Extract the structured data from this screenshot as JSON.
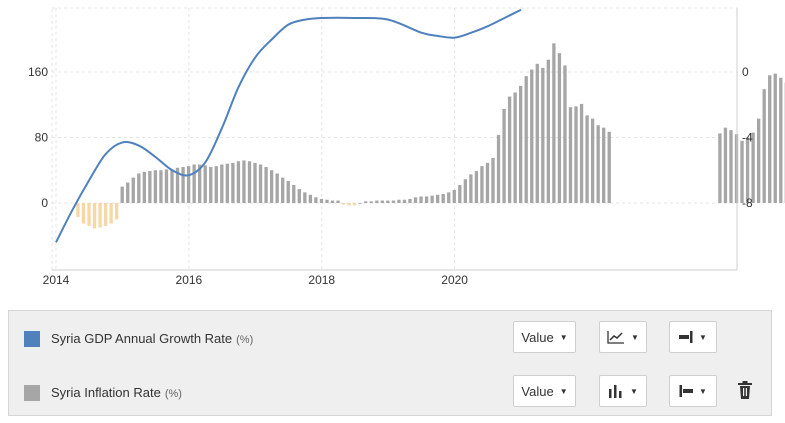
{
  "chart_data": {
    "type": "line+bar",
    "x_ticks": [
      "2014",
      "2016",
      "2018",
      "2020"
    ],
    "left_axis": {
      "ticks": [
        "0",
        "80",
        "160"
      ],
      "ylim": [
        -80,
        200
      ]
    },
    "right_axis": {
      "ticks": [
        "-8",
        "-4",
        "0"
      ],
      "ylim": [
        -12,
        4
      ]
    },
    "series": [
      {
        "name": "Syria GDP Annual Growth Rate",
        "unit": "(%)",
        "kind": "line",
        "axis": "right",
        "color": "#4f81bd",
        "x": [
          2014.0,
          2014.25,
          2014.5,
          2014.75,
          2015.0,
          2015.25,
          2015.5,
          2015.75,
          2016.0,
          2016.25,
          2016.5,
          2016.75,
          2017.0,
          2017.25,
          2017.5,
          2017.75,
          2018.0,
          2018.5,
          2019.0,
          2019.5,
          2019.75,
          2020.0,
          2020.25,
          2020.5,
          2020.75,
          2021.0
        ],
        "values": [
          -10.4,
          -8.4,
          -6.6,
          -5.0,
          -4.3,
          -4.5,
          -5.2,
          -6.0,
          -6.3,
          -5.5,
          -3.4,
          -0.9,
          0.9,
          2.0,
          2.9,
          3.2,
          3.3,
          3.3,
          3.2,
          2.4,
          2.2,
          2.1,
          2.4,
          2.8,
          3.3,
          3.8
        ]
      },
      {
        "name": "Syria Inflation Rate",
        "unit": "(%)",
        "kind": "bar",
        "axis": "left",
        "color": "#a6a6a6",
        "negative_color": "#f6d7a7",
        "x_start": 2014.33,
        "x_step": 0.0833,
        "values": [
          -17,
          -25,
          -28,
          -31,
          -30,
          -28,
          -25,
          -20,
          20,
          25,
          31,
          36,
          38,
          39,
          40,
          40,
          41,
          41,
          43,
          44,
          45,
          47,
          47,
          46,
          44,
          45,
          47,
          48,
          49,
          51,
          52,
          51,
          49,
          47,
          44,
          40,
          36,
          31,
          27,
          22,
          17,
          13,
          10,
          7,
          5,
          4,
          3,
          3,
          -2,
          -3,
          -3,
          0,
          2,
          2,
          3,
          3,
          3,
          3,
          4,
          4,
          5,
          7,
          8,
          8,
          9,
          10,
          11,
          13,
          16,
          22,
          29,
          35,
          39,
          45,
          49,
          55,
          83,
          115,
          130,
          135,
          143,
          155,
          163,
          170,
          165,
          175,
          195,
          183,
          168,
          117,
          118,
          121,
          107,
          103,
          95,
          92,
          87,
          null,
          null,
          null,
          null,
          null,
          null,
          null,
          null,
          null,
          null,
          null,
          null,
          null,
          null,
          null,
          null,
          null,
          null,
          null,
          85,
          92,
          89,
          84,
          76,
          80,
          86,
          103,
          139,
          156,
          158,
          153,
          147,
          142,
          136,
          132,
          137,
          128
        ]
      }
    ]
  },
  "legend": {
    "rows": [
      {
        "name": "Syria GDP Annual Growth Rate",
        "unit": "(%)",
        "color": "#4f81bd",
        "value_label": "Value",
        "chart_icon": "line-chart-icon",
        "axis_icon": "axis-right-icon"
      },
      {
        "name": "Syria Inflation Rate",
        "unit": "(%)",
        "color": "#a6a6a6",
        "value_label": "Value",
        "chart_icon": "bar-chart-icon",
        "axis_icon": "axis-left-icon",
        "delete_icon": "trash-icon"
      }
    ]
  }
}
